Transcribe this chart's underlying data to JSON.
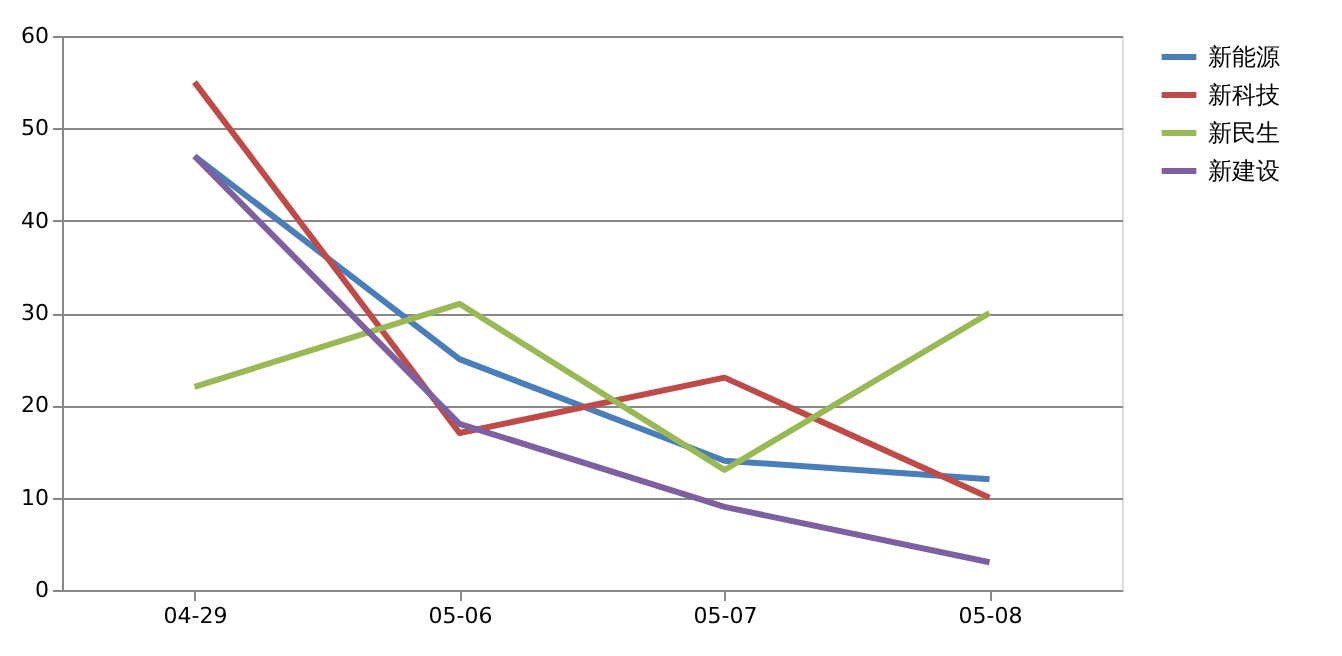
{
  "chart_data": {
    "type": "line",
    "categories": [
      "04-29",
      "05-06",
      "05-07",
      "05-08"
    ],
    "series": [
      {
        "name": "新能源",
        "color": "#4a7ebb",
        "values": [
          47,
          25,
          14,
          12
        ]
      },
      {
        "name": "新科技",
        "color": "#be4b48",
        "values": [
          55,
          17,
          23,
          10
        ]
      },
      {
        "name": "新民生",
        "color": "#98b954",
        "values": [
          22,
          31,
          13,
          30
        ]
      },
      {
        "name": "新建设",
        "color": "#7d60a0",
        "values": [
          47,
          18,
          9,
          3
        ]
      }
    ],
    "ylim": [
      0,
      60
    ],
    "yticks": [
      0,
      10,
      20,
      30,
      40,
      50,
      60
    ],
    "grid": "y",
    "legend": "right",
    "marker": "none",
    "line_style": "solid"
  }
}
